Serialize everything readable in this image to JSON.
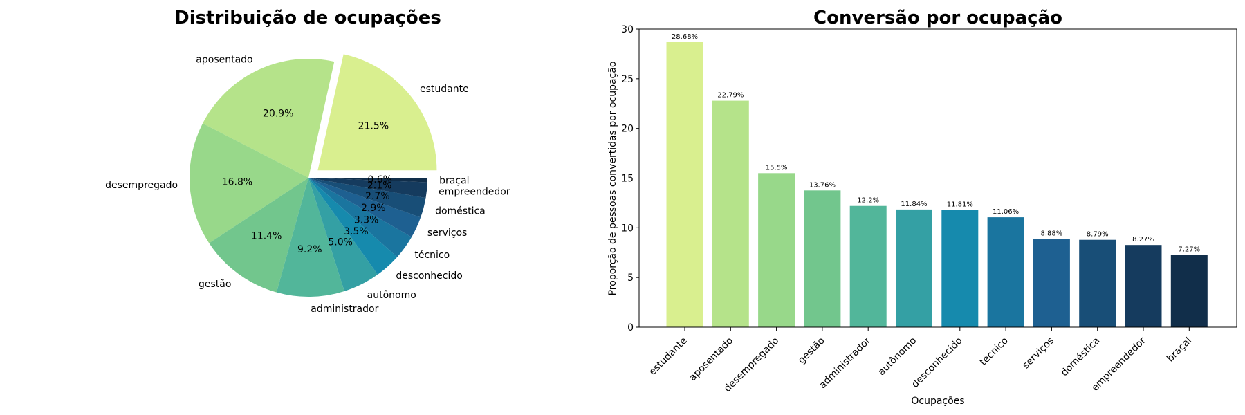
{
  "chart_data": [
    {
      "type": "pie",
      "title": "Distribuição de ocupações",
      "categories": [
        "estudante",
        "aposentado",
        "desempregado",
        "gestão",
        "administrador",
        "autônomo",
        "desconhecido",
        "técnico",
        "serviços",
        "doméstica",
        "empreendedor",
        "braçal"
      ],
      "values": [
        21.5,
        20.9,
        16.8,
        11.4,
        9.2,
        5.0,
        3.5,
        3.3,
        2.9,
        2.7,
        2.1,
        0.6
      ],
      "labels": [
        "21.5%",
        "20.9%",
        "16.8%",
        "11.4%",
        "9.2%",
        "5.0%",
        "3.5%",
        "3.3%",
        "2.9%",
        "2.7%",
        "2.1%",
        "0.6%"
      ],
      "exploded": [
        "estudante"
      ],
      "colors": [
        "#d9ef8f",
        "#b5e38a",
        "#98d88a",
        "#72c68d",
        "#52b69a",
        "#34a0a4",
        "#168aad",
        "#1a759f",
        "#1e6091",
        "#184e77",
        "#153b5e",
        "#112e4a"
      ]
    },
    {
      "type": "bar",
      "title": "Conversão por ocupação",
      "xlabel": "Ocupações",
      "ylabel": "Proporção de pessoas convertidas por ocupação",
      "categories": [
        "estudante",
        "aposentado",
        "desempregado",
        "gestão",
        "administrador",
        "autônomo",
        "desconhecido",
        "técnico",
        "serviços",
        "doméstica",
        "empreendedor",
        "braçal"
      ],
      "values": [
        28.68,
        22.79,
        15.5,
        13.76,
        12.2,
        11.84,
        11.81,
        11.06,
        8.88,
        8.79,
        8.27,
        7.27
      ],
      "labels": [
        "28.68%",
        "22.79%",
        "15.5%",
        "13.76%",
        "12.2%",
        "11.84%",
        "11.81%",
        "11.06%",
        "8.88%",
        "8.79%",
        "8.27%",
        "7.27%"
      ],
      "ylim": [
        0,
        30
      ],
      "yticks": [
        0,
        5,
        10,
        15,
        20,
        25,
        30
      ],
      "grid": false,
      "colors": [
        "#d9ef8f",
        "#b5e38a",
        "#98d88a",
        "#72c68d",
        "#52b69a",
        "#34a0a4",
        "#168aad",
        "#1a759f",
        "#1e6091",
        "#184e77",
        "#153b5e",
        "#112e4a"
      ]
    }
  ]
}
